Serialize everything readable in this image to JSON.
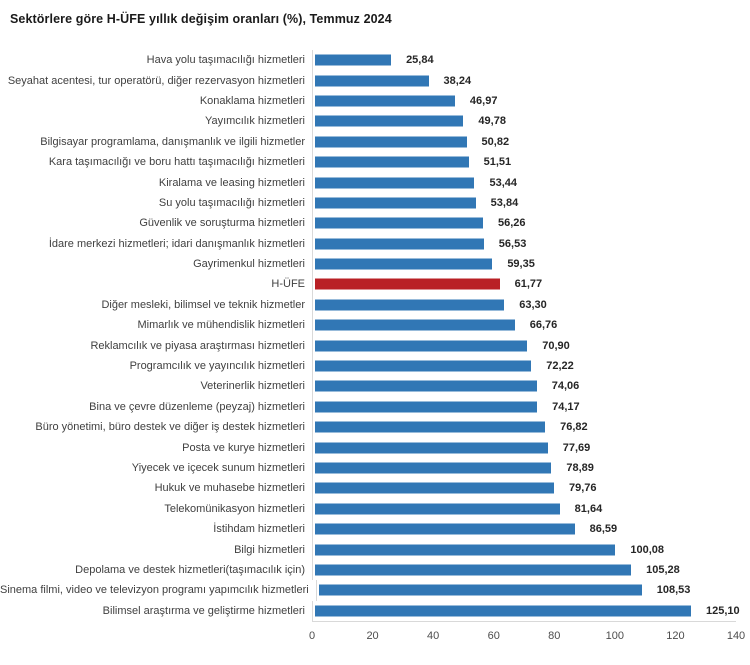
{
  "title": "Sektörlere göre H-ÜFE yıllık değişim oranları (%), Temmuz 2024",
  "chart_data": {
    "type": "bar",
    "orientation": "horizontal",
    "title": "Sektörlere göre H-ÜFE yıllık değişim oranları (%), Temmuz 2024",
    "xlabel": "",
    "ylabel": "",
    "xlim": [
      0,
      140
    ],
    "x_ticks": [
      0,
      20,
      40,
      60,
      80,
      100,
      120,
      140
    ],
    "grid": "off",
    "legend": "none",
    "highlight_category": "H-ÜFE",
    "highlight_index": 11,
    "categories": [
      "Hava yolu taşımacılığı hizmetleri",
      "Seyahat acentesi, tur operatörü, diğer rezervasyon hizmetleri",
      "Konaklama hizmetleri",
      "Yayımcılık hizmetleri",
      "Bilgisayar programlama, danışmanlık ve ilgili hizmetler",
      "Kara taşımacılığı ve boru hattı taşımacılığı hizmetleri",
      "Kiralama ve leasing hizmetleri",
      "Su yolu taşımacılığı hizmetleri",
      "Güvenlik ve soruşturma hizmetleri",
      "İdare merkezi hizmetleri; idari danışmanlık hizmetleri",
      "Gayrimenkul hizmetleri",
      "H-ÜFE",
      "Diğer mesleki, bilimsel ve teknik hizmetler",
      "Mimarlık ve mühendislik hizmetleri",
      "Reklamcılık ve piyasa araştırması hizmetleri",
      "Programcılık ve yayıncılık hizmetleri",
      "Veterinerlik hizmetleri",
      "Bina ve çevre düzenleme (peyzaj) hizmetleri",
      "Büro yönetimi, büro destek ve diğer iş destek hizmetleri",
      "Posta ve kurye hizmetleri",
      "Yiyecek ve içecek sunum hizmetleri",
      "Hukuk ve muhasebe hizmetleri",
      "Telekomünikasyon hizmetleri",
      "İstihdam hizmetleri",
      "Bilgi hizmetleri",
      "Depolama ve destek hizmetleri(taşımacılık için)",
      "Sinema filmi, video ve televizyon programı yapımcılık hizmetleri",
      "Bilimsel araştırma ve geliştirme hizmetleri"
    ],
    "values": [
      25.84,
      38.24,
      46.97,
      49.78,
      50.82,
      51.51,
      53.44,
      53.84,
      56.26,
      56.53,
      59.35,
      61.77,
      63.3,
      66.76,
      70.9,
      72.22,
      74.06,
      74.17,
      76.82,
      77.69,
      78.89,
      79.76,
      81.64,
      86.59,
      100.08,
      105.28,
      108.53,
      125.1
    ],
    "value_labels": [
      "25,84",
      "38,24",
      "46,97",
      "49,78",
      "50,82",
      "51,51",
      "53,44",
      "53,84",
      "56,26",
      "56,53",
      "59,35",
      "61,77",
      "63,30",
      "66,76",
      "70,90",
      "72,22",
      "74,06",
      "74,17",
      "76,82",
      "77,69",
      "78,89",
      "79,76",
      "81,64",
      "86,59",
      "100,08",
      "105,28",
      "108,53",
      "125,10"
    ],
    "colors": {
      "bar": "#3177B5",
      "highlight": "#B92025",
      "axis_line": "#D9D9D9",
      "category_text": "#404040",
      "value_text": "#262626",
      "tick_text": "#4D4D4D",
      "title_text": "#1A1A1A",
      "background": "#FFFFFF"
    }
  }
}
